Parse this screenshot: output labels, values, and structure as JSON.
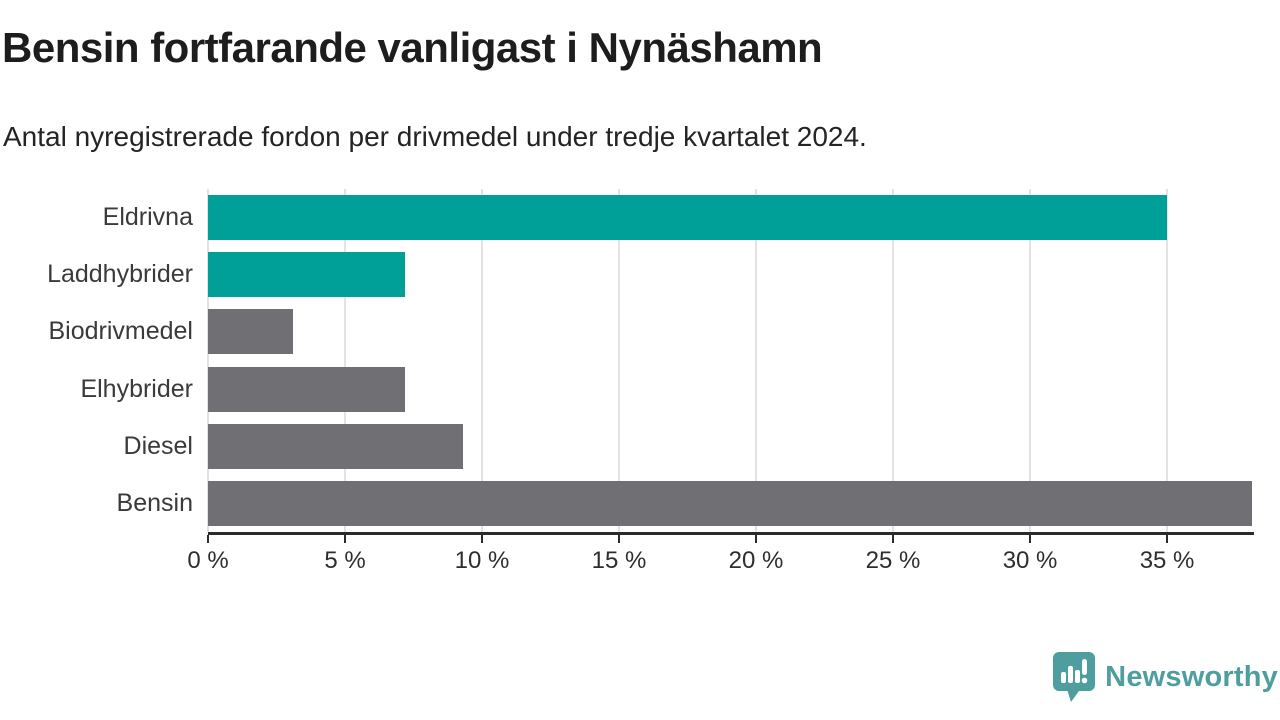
{
  "title": "Bensin fortfarande vanligast i Nynäshamn",
  "subtitle": "Antal nyregistrerade fordon per drivmedel under tredje kvartalet 2024.",
  "chart_data": {
    "type": "bar",
    "orientation": "horizontal",
    "categories": [
      "Eldrivna",
      "Laddhybrider",
      "Biodrivmedel",
      "Elhybrider",
      "Diesel",
      "Bensin"
    ],
    "values": [
      35.0,
      7.2,
      3.1,
      7.2,
      9.3,
      38.1
    ],
    "value_unit": "%",
    "bar_colors": [
      "#00A099",
      "#00A099",
      "#706F73",
      "#706F73",
      "#706F73",
      "#706F73"
    ],
    "xlim": [
      0,
      38.1
    ],
    "x_tick_values": [
      0,
      5,
      10,
      15,
      20,
      25,
      30,
      35
    ],
    "x_tick_labels": [
      "0 %",
      "5 %",
      "10 %",
      "15 %",
      "20 %",
      "25 %",
      "30 %",
      "35 %"
    ],
    "grid": true,
    "legend": false,
    "xlabel": "",
    "ylabel": ""
  },
  "colors": {
    "highlight_teal": "#00A099",
    "bar_gray": "#706F73",
    "gridline": "#E3E3E3",
    "axis": "#2B2B2B",
    "title_text": "#1D1D1D",
    "label_text": "#3A3A3A",
    "logo_teal": "#4F9E9F",
    "background": "#FFFFFF"
  },
  "footer": {
    "brand": "Newsworthy",
    "logo_icon": "bar-chart-speech-bubble-icon"
  }
}
